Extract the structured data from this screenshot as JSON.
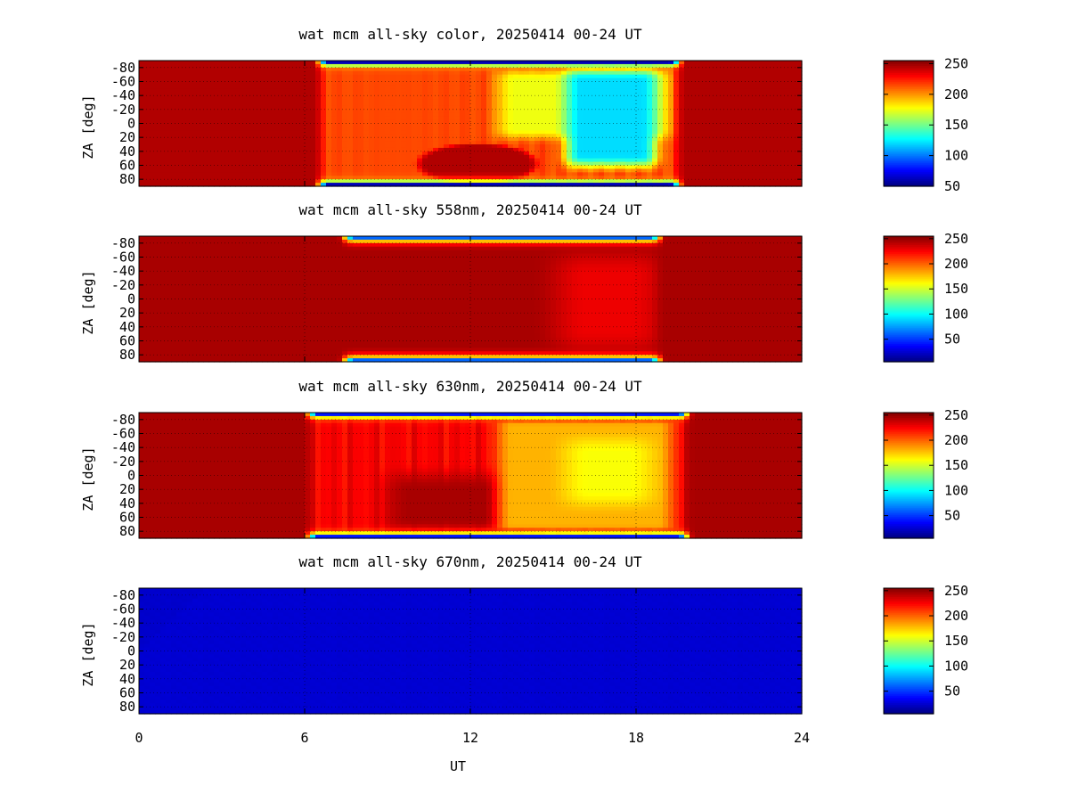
{
  "chart_data": [
    {
      "type": "heatmap",
      "title": "wat mcm all-sky color, 20250414 00-24 UT",
      "xlabel": "",
      "ylabel": "ZA [deg]",
      "xlim": [
        0,
        24
      ],
      "ylim": [
        -90,
        90
      ],
      "x_ticks": [
        "0",
        "6",
        "12",
        "18",
        "24"
      ],
      "y_ticks": [
        "-80",
        "-60",
        "-40",
        "-20",
        "0",
        "20",
        "40",
        "60",
        "80"
      ],
      "colorbar_range": [
        50,
        255
      ],
      "colorbar_ticks": [
        "50",
        "100",
        "150",
        "200",
        "250"
      ],
      "grid": true,
      "features": {
        "day_start_ut": 6.6,
        "day_end_ut": 19.5,
        "bright_region": {
          "x": [
            13,
            19.2
          ],
          "za": [
            -75,
            20
          ],
          "value": 175
        },
        "core_region": {
          "x": [
            15.5,
            18.7
          ],
          "za": [
            -75,
            60
          ],
          "value": 120
        },
        "dark_lobe": {
          "x": [
            10,
            14.5
          ],
          "za": [
            20,
            80
          ],
          "value": 245
        },
        "edge_value": 60
      }
    },
    {
      "type": "heatmap",
      "title": "wat mcm all-sky 558nm, 20250414 00-24 UT",
      "xlabel": "",
      "ylabel": "ZA [deg]",
      "xlim": [
        0,
        24
      ],
      "ylim": [
        -90,
        90
      ],
      "x_ticks": [
        "0",
        "6",
        "12",
        "18",
        "24"
      ],
      "y_ticks": [
        "-80",
        "-60",
        "-40",
        "-20",
        "0",
        "20",
        "40",
        "60",
        "80"
      ],
      "colorbar_range": [
        5,
        255
      ],
      "colorbar_ticks": [
        "50",
        "100",
        "150",
        "200",
        "250"
      ],
      "grid": true,
      "features": {
        "day_start_ut": 7.5,
        "day_end_ut": 18.8,
        "bright_region": {
          "x": [
            15.2,
            18.8
          ],
          "za": [
            -60,
            70
          ],
          "value": 228
        },
        "edge_value": 60
      }
    },
    {
      "type": "heatmap",
      "title": "wat mcm all-sky 630nm, 20250414 00-24 UT",
      "xlabel": "",
      "ylabel": "ZA [deg]",
      "xlim": [
        0,
        24
      ],
      "ylim": [
        -90,
        90
      ],
      "x_ticks": [
        "0",
        "6",
        "12",
        "18",
        "24"
      ],
      "y_ticks": [
        "-80",
        "-60",
        "-40",
        "-20",
        "0",
        "20",
        "40",
        "60",
        "80"
      ],
      "colorbar_range": [
        5,
        255
      ],
      "colorbar_ticks": [
        "50",
        "100",
        "150",
        "200",
        "250"
      ],
      "grid": true,
      "features": {
        "day_start_ut": 6.2,
        "day_end_ut": 19.8,
        "bright_region": {
          "x": [
            13,
            19.3
          ],
          "za": [
            -78,
            78
          ],
          "value": 180
        },
        "core_region": {
          "x": [
            15.5,
            18.5
          ],
          "za": [
            -50,
            40
          ],
          "value": 160
        },
        "edge_value": 40
      }
    },
    {
      "type": "heatmap",
      "title": "wat mcm all-sky 670nm, 20250414 00-24 UT",
      "xlabel": "UT",
      "ylabel": "ZA [deg]",
      "xlim": [
        0,
        24
      ],
      "ylim": [
        -90,
        90
      ],
      "x_ticks": [
        "0",
        "6",
        "12",
        "18",
        "24"
      ],
      "y_ticks": [
        "-80",
        "-60",
        "-40",
        "-20",
        "0",
        "20",
        "40",
        "60",
        "80"
      ],
      "colorbar_range": [
        5,
        255
      ],
      "colorbar_ticks": [
        "50",
        "100",
        "150",
        "200",
        "250"
      ],
      "grid": true,
      "features": {
        "uniform_value": 25
      }
    }
  ]
}
